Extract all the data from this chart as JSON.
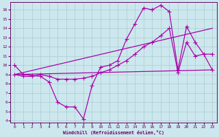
{
  "xlabel": "Windchill (Refroidissement éolien,°C)",
  "bg_color": "#cce8ee",
  "grid_color": "#aacccc",
  "line_color": "#aa00aa",
  "xlim": [
    -0.5,
    23.5
  ],
  "ylim": [
    3.8,
    16.8
  ],
  "xticks": [
    0,
    1,
    2,
    3,
    4,
    5,
    6,
    7,
    8,
    9,
    10,
    11,
    12,
    13,
    14,
    15,
    16,
    17,
    18,
    19,
    20,
    21,
    22,
    23
  ],
  "yticks": [
    4,
    5,
    6,
    7,
    8,
    9,
    10,
    11,
    12,
    13,
    14,
    15,
    16
  ],
  "line1_x": [
    0,
    1,
    2,
    3,
    4,
    5,
    6,
    7,
    8,
    9,
    10,
    11,
    12,
    13,
    14,
    15,
    16,
    17,
    18,
    19,
    20,
    21,
    22,
    23
  ],
  "line1_y": [
    10.0,
    9.0,
    8.9,
    8.8,
    8.2,
    6.0,
    5.5,
    5.5,
    4.2,
    7.8,
    9.8,
    10.0,
    10.5,
    12.8,
    14.5,
    16.2,
    16.0,
    16.5,
    15.8,
    9.5,
    14.2,
    12.5,
    11.2,
    11.2
  ],
  "line2_x": [
    0,
    1,
    2,
    3,
    4,
    5,
    6,
    7,
    8,
    9,
    10,
    11,
    12,
    13,
    14,
    15,
    16,
    17,
    18,
    19,
    20,
    21,
    22,
    23
  ],
  "line2_y": [
    9.0,
    8.8,
    8.8,
    9.0,
    8.8,
    8.5,
    8.5,
    8.5,
    8.6,
    8.8,
    9.2,
    9.5,
    10.0,
    10.5,
    11.2,
    12.0,
    12.5,
    13.2,
    14.0,
    9.2,
    12.5,
    11.0,
    11.2,
    9.5
  ],
  "line3_x": [
    0,
    23
  ],
  "line3_y": [
    9.0,
    14.0
  ],
  "line4_x": [
    0,
    23
  ],
  "line4_y": [
    9.0,
    9.5
  ]
}
